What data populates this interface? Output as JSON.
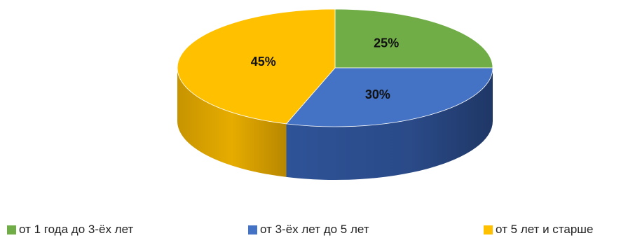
{
  "chart_data": {
    "type": "pie",
    "title": "",
    "three_d": true,
    "categories": [
      "от 1 года до 3-ёх лет",
      "от 3-ёх лет до 5 лет",
      "от 5 лет и старше"
    ],
    "values": [
      25,
      30,
      45
    ],
    "data_labels": [
      "25%",
      "30%",
      "45%"
    ],
    "colors": [
      "#70ad47",
      "#4472c4",
      "#ffc000"
    ],
    "legend_position": "bottom"
  }
}
